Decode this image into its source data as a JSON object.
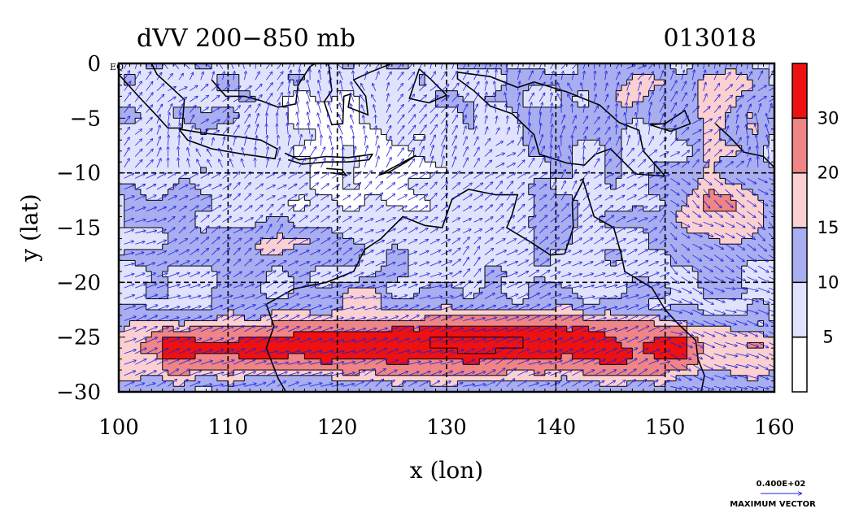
{
  "chart_data": {
    "type": "heatmap",
    "title_left": "dVV 200−850 mb",
    "title_right": "013018",
    "xlabel": "x (lon)",
    "ylabel": "y (lat)",
    "xlim": [
      100,
      160
    ],
    "ylim": [
      -30,
      0
    ],
    "x_ticks": [
      "100",
      "110",
      "120",
      "130",
      "140",
      "150",
      "160"
    ],
    "y_ticks": [
      "0",
      "−5",
      "−10",
      "−15",
      "−20",
      "−25",
      "−30"
    ],
    "eq_label": "EQ",
    "grid_lon": [
      110,
      120,
      130,
      140,
      150
    ],
    "grid_lat": [
      -10,
      -20
    ],
    "colorbar": {
      "levels": [
        0,
        5,
        10,
        15,
        20,
        30,
        40
      ],
      "tick_labels": [
        "5",
        "10",
        "15",
        "20",
        "30"
      ],
      "colors": [
        "#ffffff",
        "#e0e3fb",
        "#a8aef0",
        "#fbd0d0",
        "#f08585",
        "#ee1111"
      ]
    },
    "legend": {
      "vector_label": "0.400E+02",
      "caption": "MAXIMUM VECTOR"
    },
    "jet_core": {
      "lon_start": 104,
      "lon_end": 152,
      "lat": -25.5,
      "max_shear": 35
    },
    "vector_color": "#2020dd"
  }
}
